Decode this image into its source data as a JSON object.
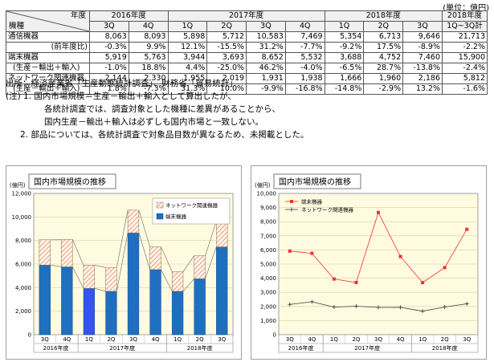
{
  "unit_label": "(単位：億円)",
  "table": {
    "corner_top": "年度",
    "corner_bottom": "機種",
    "years": [
      "2016年度",
      "2017年度",
      "2018年度",
      "2018年度"
    ],
    "quarters": [
      "3Q",
      "4Q",
      "1Q",
      "2Q",
      "3Q",
      "4Q",
      "1Q",
      "2Q",
      "3Q",
      "1Q~3Q計"
    ],
    "rows": [
      {
        "label": "通信機器",
        "values": [
          "8,063",
          "8,093",
          "5,898",
          "5,712",
          "10,583",
          "7,469",
          "5,354",
          "6,713",
          "9,646",
          "21,713"
        ]
      },
      {
        "label": "(前年度比)",
        "values": [
          "-0.3%",
          "9.9%",
          "12.1%",
          "-15.5%",
          "31.2%",
          "-7.7%",
          "-9.2%",
          "17.5%",
          "-8.9%",
          "-2.2%"
        ]
      },
      {
        "label": "端末機器",
        "values": [
          "5,919",
          "5,763",
          "3,944",
          "3,693",
          "8,652",
          "5,532",
          "3,688",
          "4,752",
          "7,460",
          "15,900"
        ]
      },
      {
        "label": "(生産－輸出＋輸入)",
        "values": [
          "-1.0%",
          "18.8%",
          "4.4%",
          "-25.0%",
          "46.2%",
          "-4.0%",
          "-6.5%",
          "28.7%",
          "-13.8%",
          "-2.4%"
        ]
      },
      {
        "label": "ネットワーク関連機器",
        "values": [
          "2,144",
          "2,330",
          "1,955",
          "2,019",
          "1,931",
          "1,938",
          "1,666",
          "1,960",
          "2,186",
          "5,812"
        ]
      },
      {
        "label": "(生産－輸出＋輸入)",
        "values": [
          "1.8%",
          "-7.3%",
          "31.3%",
          "10.0%",
          "-9.9%",
          "-16.8%",
          "-14.8%",
          "-2.9%",
          "13.2%",
          "-1.6%"
        ]
      }
    ]
  },
  "notes": {
    "source": "出所：経済産業省「生産動態統計調査」、財務省「貿易統計」",
    "note1": "(注) 1. 国内市場規模＝生産－輸出＋輸入として算出したが、",
    "note1b": "各統計調査では、調査対象とした機種に差異があることから、",
    "note1c": "国内生産－輸出＋輸入は必ずしも国内市場と一致しない。",
    "note2": "2. 部品については、各統計調査で対象品目数が異なるため、未掲載とした。"
  },
  "colors": {
    "terminal_bar": "#1f6fbf",
    "terminal_bar_highlight": "#3355ee",
    "network_hatch": "#e8865a",
    "terminal_line": "#ee3333",
    "network_line": "#404040",
    "plot_bg": "#fffbe0"
  },
  "chart_data": [
    {
      "type": "bar",
      "stacked": true,
      "title": "国内市場規模の推移",
      "y_unit": "(億円)",
      "categories": [
        "3Q",
        "4Q",
        "1Q",
        "2Q",
        "3Q",
        "4Q",
        "1Q",
        "2Q",
        "3Q"
      ],
      "year_groups": [
        {
          "label": "2016年度",
          "count": 2
        },
        {
          "label": "2017年度",
          "count": 4
        },
        {
          "label": "2018年度",
          "count": 3
        }
      ],
      "ylim": [
        0,
        12000
      ],
      "ytick_step": 2000,
      "ytick_labels": [
        "0",
        "2,000",
        "4,000",
        "6,000",
        "8,000",
        "10,000",
        "12,000"
      ],
      "grid": true,
      "legend": "top-right",
      "series": [
        {
          "name": "端末機器",
          "values": [
            5919,
            5763,
            3944,
            3693,
            8652,
            5532,
            3688,
            4752,
            7460
          ]
        },
        {
          "name": "ネットワーク関連機器",
          "values": [
            2144,
            2330,
            1955,
            2019,
            1931,
            1938,
            1666,
            1960,
            2186
          ]
        }
      ]
    },
    {
      "type": "line",
      "title": "国内市場規模の推移",
      "y_unit": "(億円)",
      "categories": [
        "3Q",
        "4Q",
        "1Q",
        "2Q",
        "3Q",
        "4Q",
        "1Q",
        "2Q",
        "3Q"
      ],
      "year_groups": [
        {
          "label": "2016年度",
          "count": 2
        },
        {
          "label": "2017年度",
          "count": 4
        },
        {
          "label": "2018年度",
          "count": 3
        }
      ],
      "ylim": [
        0,
        10000
      ],
      "ytick_step": 1000,
      "ytick_labels": [
        "0",
        "1,000",
        "2,000",
        "3,000",
        "4,000",
        "5,000",
        "6,000",
        "7,000",
        "8,000",
        "9,000",
        "10,000"
      ],
      "grid": true,
      "legend": "top-left",
      "series": [
        {
          "name": "端末機器",
          "values": [
            5919,
            5763,
            3944,
            3693,
            8652,
            5532,
            3688,
            4752,
            7460
          ]
        },
        {
          "name": "ネットワーク関連機器",
          "values": [
            2144,
            2330,
            1955,
            2019,
            1931,
            1938,
            1666,
            1960,
            2186
          ]
        }
      ]
    }
  ]
}
